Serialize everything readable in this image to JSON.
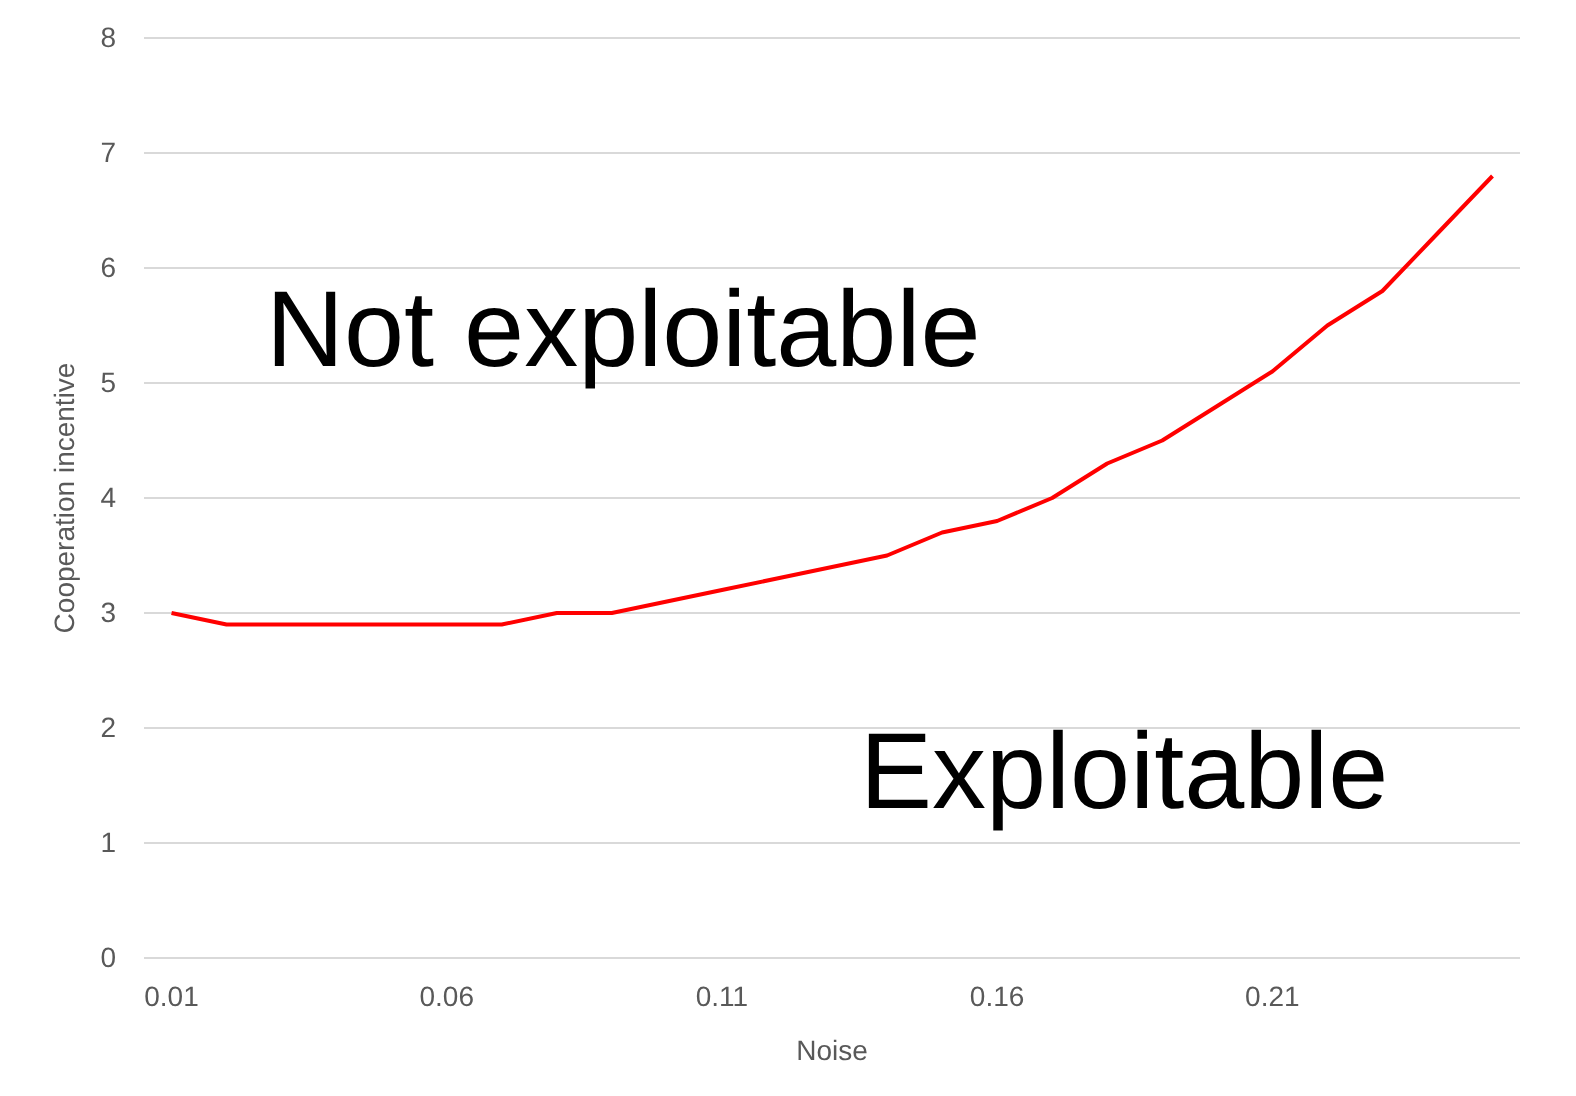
{
  "chart_data": {
    "type": "line",
    "xlabel": "Noise",
    "ylabel": "Cooperation incentive",
    "x": [
      0.01,
      0.02,
      0.03,
      0.04,
      0.05,
      0.06,
      0.07,
      0.08,
      0.09,
      0.1,
      0.11,
      0.12,
      0.13,
      0.14,
      0.15,
      0.16,
      0.17,
      0.18,
      0.19,
      0.2,
      0.21,
      0.22,
      0.23,
      0.24,
      0.25
    ],
    "series": [
      {
        "color": "#ff0000",
        "values": [
          3.0,
          2.9,
          2.9,
          2.9,
          2.9,
          2.9,
          2.9,
          3.0,
          3.0,
          3.1,
          3.2,
          3.3,
          3.4,
          3.5,
          3.7,
          3.8,
          4.0,
          4.3,
          4.5,
          4.8,
          5.1,
          5.5,
          5.8,
          6.3,
          6.8
        ]
      }
    ],
    "xlim": [
      0.005,
      0.255
    ],
    "xticks": [
      0.01,
      0.06,
      0.11,
      0.16,
      0.21
    ],
    "ylim": [
      0,
      8
    ],
    "yticks": [
      0,
      1,
      2,
      3,
      4,
      5,
      6,
      7,
      8
    ],
    "grid": "y",
    "marker": "none",
    "line_style": "solid",
    "annotations": [
      "Not exploitable",
      "Exploitable"
    ]
  }
}
